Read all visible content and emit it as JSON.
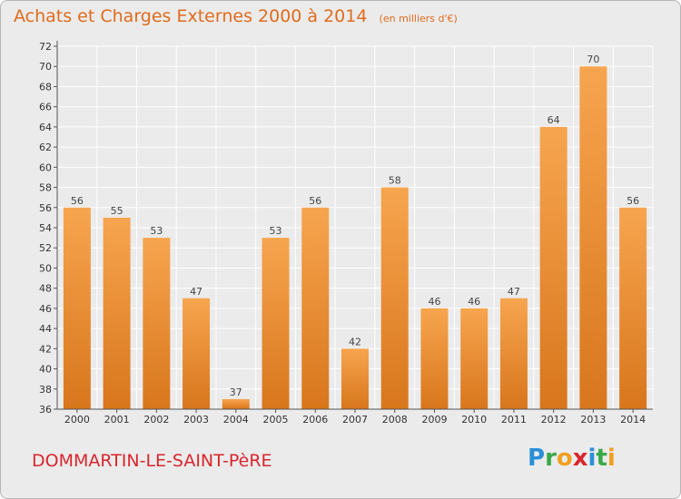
{
  "title": "Achats et Charges Externes 2000 à 2014",
  "unit": "(en milliers d'€)",
  "commune": "DOMMARTIN-LE-SAINT-PèRE",
  "logo": "Proxiti",
  "chart_data": {
    "type": "bar",
    "categories": [
      "2000",
      "2001",
      "2002",
      "2003",
      "2004",
      "2005",
      "2006",
      "2007",
      "2008",
      "2009",
      "2010",
      "2011",
      "2012",
      "2013",
      "2014"
    ],
    "values": [
      56,
      55,
      53,
      47,
      37,
      53,
      56,
      42,
      58,
      46,
      46,
      47,
      64,
      70,
      56
    ],
    "ylim": [
      36,
      72
    ],
    "yticks": [
      36,
      38,
      40,
      42,
      44,
      46,
      48,
      50,
      52,
      54,
      56,
      58,
      60,
      62,
      64,
      66,
      68,
      70,
      72
    ],
    "grid": true,
    "colors": {
      "bar_light": "#f7a54f",
      "bar_dark": "#d8761c",
      "grid": "#ffffff"
    }
  }
}
